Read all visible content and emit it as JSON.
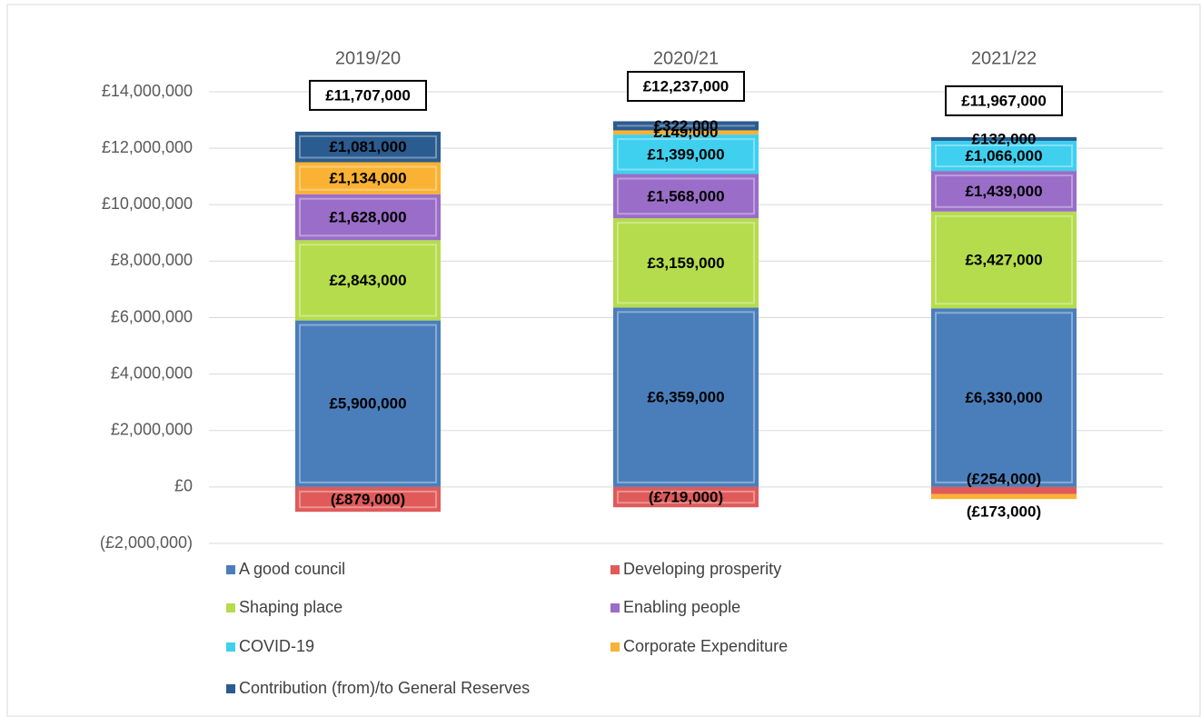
{
  "chart_data": {
    "type": "stacked_bar",
    "categories": [
      "2019/20",
      "2020/21",
      "2021/22"
    ],
    "series": [
      {
        "name": "A good council",
        "color": "#4a7ebb",
        "values": [
          5900000,
          6359000,
          6330000
        ],
        "value_labels": [
          "£5,900,000",
          "£6,359,000",
          "£6,330,000"
        ]
      },
      {
        "name": "Developing prosperity",
        "color": "#e05a5a",
        "values": [
          -879000,
          -719000,
          -254000
        ],
        "value_labels": [
          "(£879,000)",
          "(£719,000)",
          "(£254,000)"
        ]
      },
      {
        "name": "Shaping place",
        "color": "#b5dc4c",
        "values": [
          2843000,
          3159000,
          3427000
        ],
        "value_labels": [
          "£2,843,000",
          "£3,159,000",
          "£3,427,000"
        ]
      },
      {
        "name": "Enabling people",
        "color": "#9a6dc8",
        "values": [
          1628000,
          1568000,
          1439000
        ],
        "value_labels": [
          "£1,628,000",
          "£1,568,000",
          "£1,439,000"
        ]
      },
      {
        "name": "COVID-19",
        "color": "#3fd0ef",
        "values": [
          null,
          1399000,
          1066000
        ],
        "value_labels": [
          null,
          "£1,399,000",
          "£1,066,000"
        ]
      },
      {
        "name": "Corporate Expenditure",
        "color": "#f9b233",
        "values": [
          1134000,
          149000,
          -173000
        ],
        "value_labels": [
          "£1,134,000",
          "£149,000",
          "(£173,000)"
        ]
      },
      {
        "name": "Contribution (from)/to General Reserves",
        "color": "#2b5c8f",
        "values": [
          1081000,
          322000,
          132000
        ],
        "value_labels": [
          "£1,081,000",
          "£322,000",
          "£132,000"
        ]
      }
    ],
    "totals": {
      "values": [
        11707000,
        12237000,
        11967000
      ],
      "value_labels": [
        "£11,707,000",
        "£12,237,000",
        "£11,967,000"
      ]
    },
    "ylim": [
      -2000000,
      14000000
    ],
    "yticks": [
      {
        "value": -2000000,
        "label": "(£2,000,000)"
      },
      {
        "value": 0,
        "label": "£0"
      },
      {
        "value": 2000000,
        "label": "£2,000,000"
      },
      {
        "value": 4000000,
        "label": "£4,000,000"
      },
      {
        "value": 6000000,
        "label": "£6,000,000"
      },
      {
        "value": 8000000,
        "label": "£8,000,000"
      },
      {
        "value": 10000000,
        "label": "£10,000,000"
      },
      {
        "value": 12000000,
        "label": "£12,000,000"
      },
      {
        "value": 14000000,
        "label": "£14,000,000"
      }
    ],
    "grid": true,
    "legend": "bottom"
  }
}
